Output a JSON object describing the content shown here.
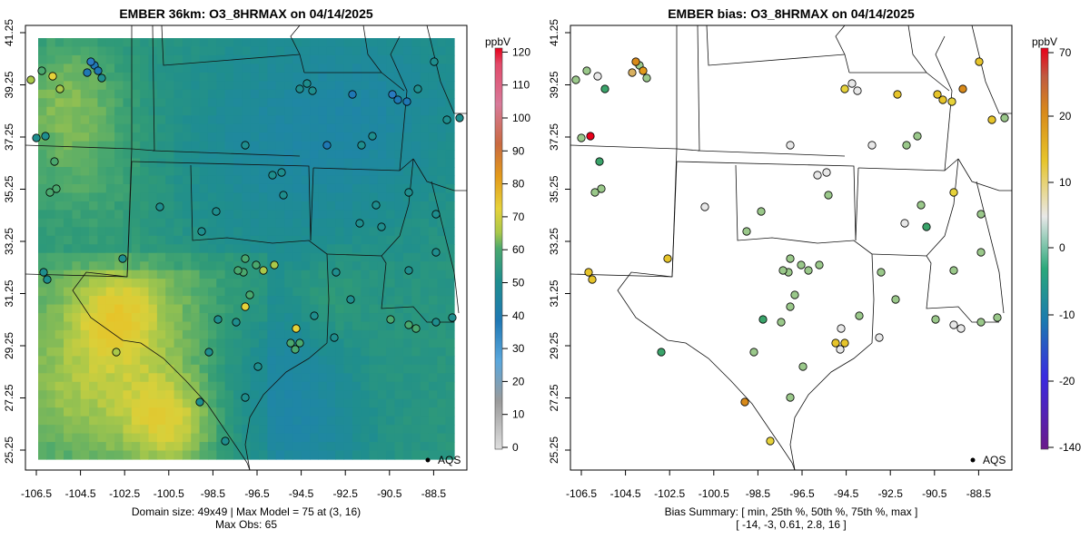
{
  "left_panel": {
    "title": "EMBER 36km: O3_8HRMAX on 04/14/2025",
    "colorbar_unit": "ppbV",
    "colorbar_ticks": [
      "0",
      "10",
      "20",
      "30",
      "40",
      "50",
      "60",
      "70",
      "80",
      "90",
      "100",
      "110",
      "120"
    ],
    "legend_label": "AQS",
    "footer_line1": "Domain size: 49x49 | Max Model = 75 at (3, 16)",
    "footer_line2": "Max Obs: 65"
  },
  "right_panel": {
    "title": "EMBER bias: O3_8HRMAX on 04/14/2025",
    "colorbar_unit": "ppbV",
    "colorbar_ticks": [
      "-140",
      "-20",
      "-10",
      "0",
      "10",
      "20",
      "70"
    ],
    "legend_label": "AQS",
    "footer_line1": "Bias Summary: [ min, 25th %, 50th %, 75th %, max ]",
    "footer_line2": "[ -14,  -3,  0.61,  2.8,  16 ]"
  },
  "axes": {
    "x_ticks": [
      "-106.5",
      "-104.5",
      "-102.5",
      "-100.5",
      "-98.5",
      "-96.5",
      "-94.5",
      "-92.5",
      "-90.5",
      "-88.5"
    ],
    "y_ticks": [
      "25.25",
      "27.25",
      "29.25",
      "31.25",
      "33.25",
      "35.25",
      "37.25",
      "39.25",
      "41.25"
    ]
  },
  "colors": {
    "model_scale": [
      "#dedede",
      "#9a9a9a",
      "#5aa7dc",
      "#1f78b4",
      "#1f8e8e",
      "#4aa86e",
      "#a9c84a",
      "#e6d23a",
      "#e39a1a",
      "#c96a40",
      "#d87a9a",
      "#e24a6a",
      "#e8001a"
    ],
    "bias_scale": [
      "#6a1a8a",
      "#2a2ad0",
      "#1a8a9a",
      "#3aa36a",
      "#e8e8e8",
      "#e6c42a",
      "#d88a1a",
      "#c05a40",
      "#e8001a"
    ]
  }
}
